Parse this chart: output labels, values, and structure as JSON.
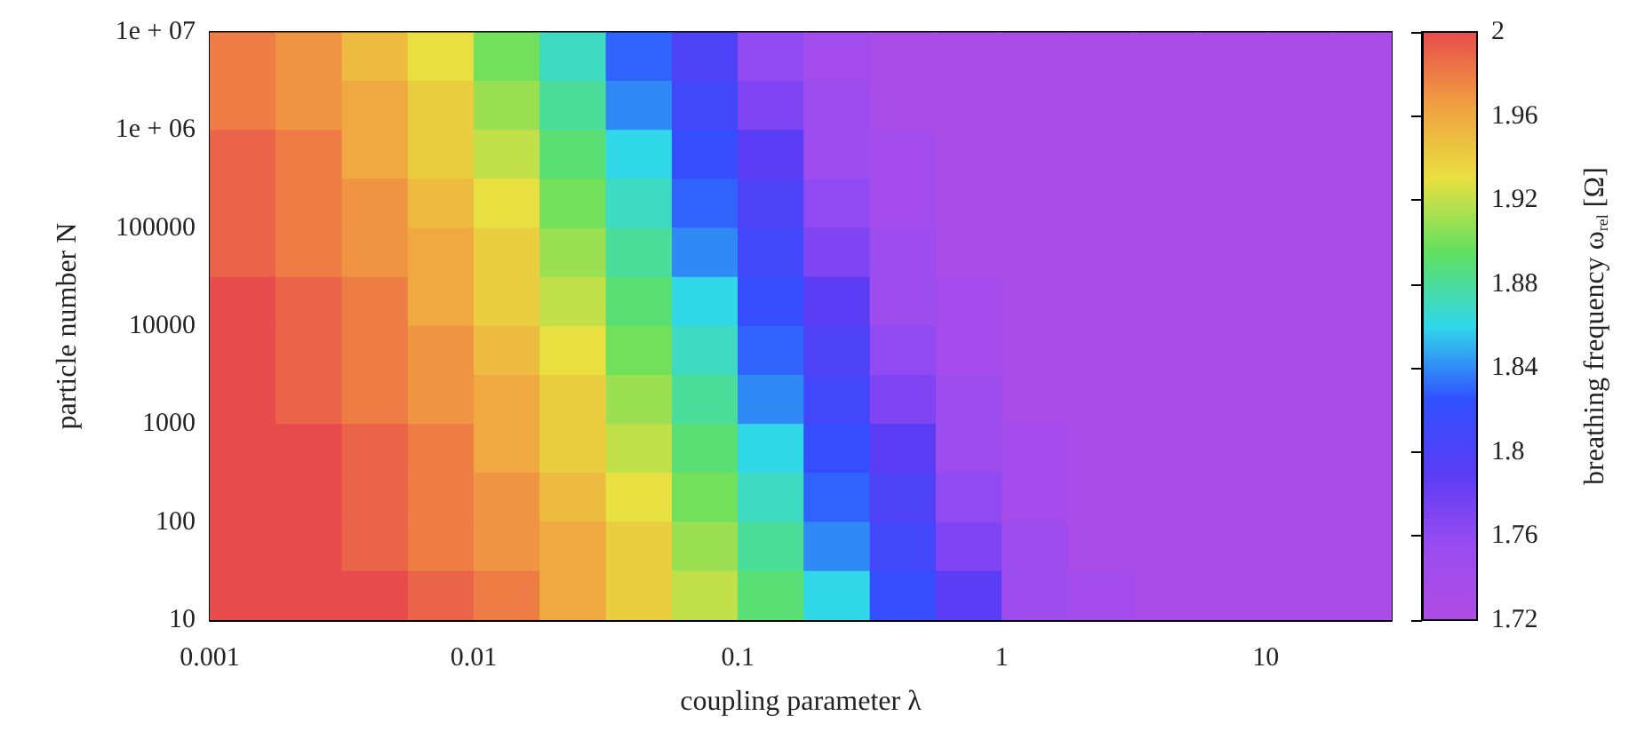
{
  "chart_data": {
    "type": "heatmap",
    "xlabel": "coupling parameter λ",
    "ylabel": "particle number N",
    "clabel": "breathing frequency ω$_{rel}$ [Ω]",
    "x": [
      0.00133,
      0.00237,
      0.00422,
      0.0075,
      0.0133,
      0.0237,
      0.0422,
      0.075,
      0.133,
      0.237,
      0.422,
      0.75,
      1.33,
      2.37,
      4.22,
      7.5,
      13.3,
      23.7
    ],
    "y": [
      5600000,
      1800000,
      560000,
      180000,
      56000,
      18000,
      5600,
      1800,
      560,
      180,
      56,
      18
    ],
    "log": "xy",
    "xlim": [
      0.001,
      30
    ],
    "xticks": [
      0.001,
      0.01,
      0.1,
      1,
      10
    ],
    "ylim": [
      10,
      10000000
    ],
    "yticks": [
      10,
      100,
      1000,
      10000,
      100000,
      {
        "value": 1000000,
        "label": "1e + 06"
      },
      {
        "value": 10000000,
        "label": "1e + 07"
      }
    ],
    "clim": [
      1.72,
      2
    ],
    "cticks": [
      1.72,
      1.76,
      1.8,
      1.84,
      1.88,
      1.92,
      1.96,
      2
    ],
    "cells": [
      [
        1.98,
        1.97,
        1.95,
        1.93,
        1.9,
        1.87,
        1.83,
        1.8,
        1.76,
        1.74,
        1.73,
        1.73,
        1.73,
        1.73,
        1.73,
        1.73,
        1.73,
        1.73
      ],
      [
        1.98,
        1.97,
        1.96,
        1.94,
        1.91,
        1.88,
        1.84,
        1.81,
        1.77,
        1.75,
        1.73,
        1.73,
        1.73,
        1.73,
        1.73,
        1.73,
        1.73,
        1.73
      ],
      [
        1.99,
        1.98,
        1.96,
        1.94,
        1.92,
        1.89,
        1.86,
        1.82,
        1.79,
        1.75,
        1.74,
        1.73,
        1.73,
        1.73,
        1.73,
        1.73,
        1.73,
        1.73
      ],
      [
        1.99,
        1.98,
        1.97,
        1.95,
        1.93,
        1.9,
        1.87,
        1.83,
        1.8,
        1.76,
        1.74,
        1.73,
        1.73,
        1.73,
        1.73,
        1.73,
        1.73,
        1.73
      ],
      [
        1.99,
        1.98,
        1.97,
        1.96,
        1.94,
        1.91,
        1.88,
        1.84,
        1.81,
        1.77,
        1.75,
        1.73,
        1.73,
        1.73,
        1.73,
        1.73,
        1.73,
        1.73
      ],
      [
        2.0,
        1.99,
        1.98,
        1.96,
        1.94,
        1.92,
        1.89,
        1.86,
        1.82,
        1.79,
        1.75,
        1.74,
        1.73,
        1.73,
        1.73,
        1.73,
        1.73,
        1.73
      ],
      [
        2.0,
        1.99,
        1.98,
        1.97,
        1.95,
        1.93,
        1.9,
        1.87,
        1.83,
        1.8,
        1.76,
        1.74,
        1.73,
        1.73,
        1.73,
        1.73,
        1.73,
        1.73
      ],
      [
        2.0,
        1.99,
        1.98,
        1.97,
        1.96,
        1.94,
        1.91,
        1.88,
        1.84,
        1.81,
        1.77,
        1.75,
        1.73,
        1.73,
        1.73,
        1.73,
        1.73,
        1.73
      ],
      [
        2.0,
        2.0,
        1.99,
        1.98,
        1.96,
        1.94,
        1.92,
        1.89,
        1.86,
        1.82,
        1.79,
        1.75,
        1.74,
        1.73,
        1.73,
        1.73,
        1.73,
        1.73
      ],
      [
        2.0,
        2.0,
        1.99,
        1.98,
        1.97,
        1.95,
        1.93,
        1.9,
        1.87,
        1.83,
        1.8,
        1.76,
        1.74,
        1.73,
        1.73,
        1.73,
        1.73,
        1.73
      ],
      [
        2.0,
        2.0,
        1.99,
        1.98,
        1.97,
        1.96,
        1.94,
        1.91,
        1.88,
        1.84,
        1.81,
        1.77,
        1.75,
        1.73,
        1.73,
        1.73,
        1.73,
        1.73
      ],
      [
        2.0,
        2.0,
        2.0,
        1.99,
        1.98,
        1.96,
        1.94,
        1.92,
        1.89,
        1.86,
        1.82,
        1.79,
        1.75,
        1.74,
        1.73,
        1.73,
        1.73,
        1.73
      ]
    ]
  }
}
